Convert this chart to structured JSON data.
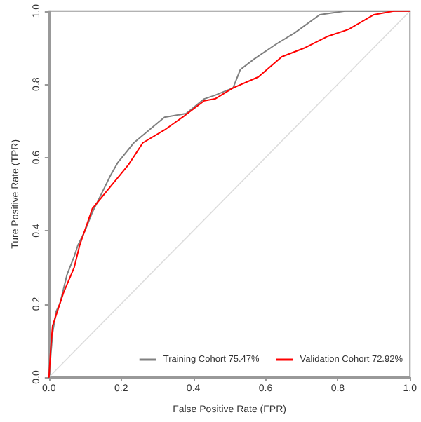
{
  "chart_data": {
    "type": "line",
    "xlabel": "False Positive Rate (FPR)",
    "ylabel": "Ture Positive Rate (TPR)",
    "xlim": [
      0,
      1
    ],
    "ylim": [
      0,
      1
    ],
    "xticks": [
      {
        "value": 0,
        "label": "0.0"
      },
      0.2,
      0.4,
      0.6,
      0.8,
      {
        "value": 1,
        "label": "1.0"
      }
    ],
    "yticks": [
      {
        "value": 0,
        "label": "0.0"
      },
      0.2,
      0.4,
      0.6,
      0.8,
      {
        "value": 1,
        "label": "1.0"
      }
    ],
    "grid": false,
    "legend": "bottom right",
    "marker": "none",
    "line_style": "solid",
    "series": [
      {
        "name": "Training Cohort 75.47%",
        "color": "#808080",
        "x": [
          0,
          0.005,
          0.01,
          0.02,
          0.03,
          0.04,
          0.05,
          0.07,
          0.08,
          0.1,
          0.12,
          0.14,
          0.17,
          0.19,
          0.235,
          0.32,
          0.38,
          0.43,
          0.46,
          0.51,
          0.53,
          0.57,
          0.63,
          0.68,
          0.75,
          0.82,
          1
        ],
        "values": [
          0,
          0.06,
          0.12,
          0.18,
          0.2,
          0.24,
          0.28,
          0.33,
          0.36,
          0.4,
          0.45,
          0.49,
          0.55,
          0.585,
          0.64,
          0.71,
          0.72,
          0.76,
          0.77,
          0.79,
          0.84,
          0.87,
          0.91,
          0.94,
          0.99,
          1,
          1
        ]
      },
      {
        "name": "Validation Cohort 72.92%",
        "color": "#ff0000",
        "x": [
          0,
          0.005,
          0.01,
          0.04,
          0.07,
          0.085,
          0.12,
          0.17,
          0.22,
          0.26,
          0.32,
          0.37,
          0.43,
          0.46,
          0.51,
          0.58,
          0.645,
          0.71,
          0.77,
          0.83,
          0.9,
          0.955,
          1
        ],
        "values": [
          0,
          0.08,
          0.14,
          0.23,
          0.3,
          0.36,
          0.46,
          0.52,
          0.58,
          0.64,
          0.675,
          0.71,
          0.755,
          0.76,
          0.79,
          0.82,
          0.875,
          0.9,
          0.93,
          0.95,
          0.99,
          1,
          1
        ]
      },
      {
        "color": "#dddddd",
        "x": [
          0,
          1
        ],
        "values": [
          0,
          1
        ]
      }
    ]
  }
}
